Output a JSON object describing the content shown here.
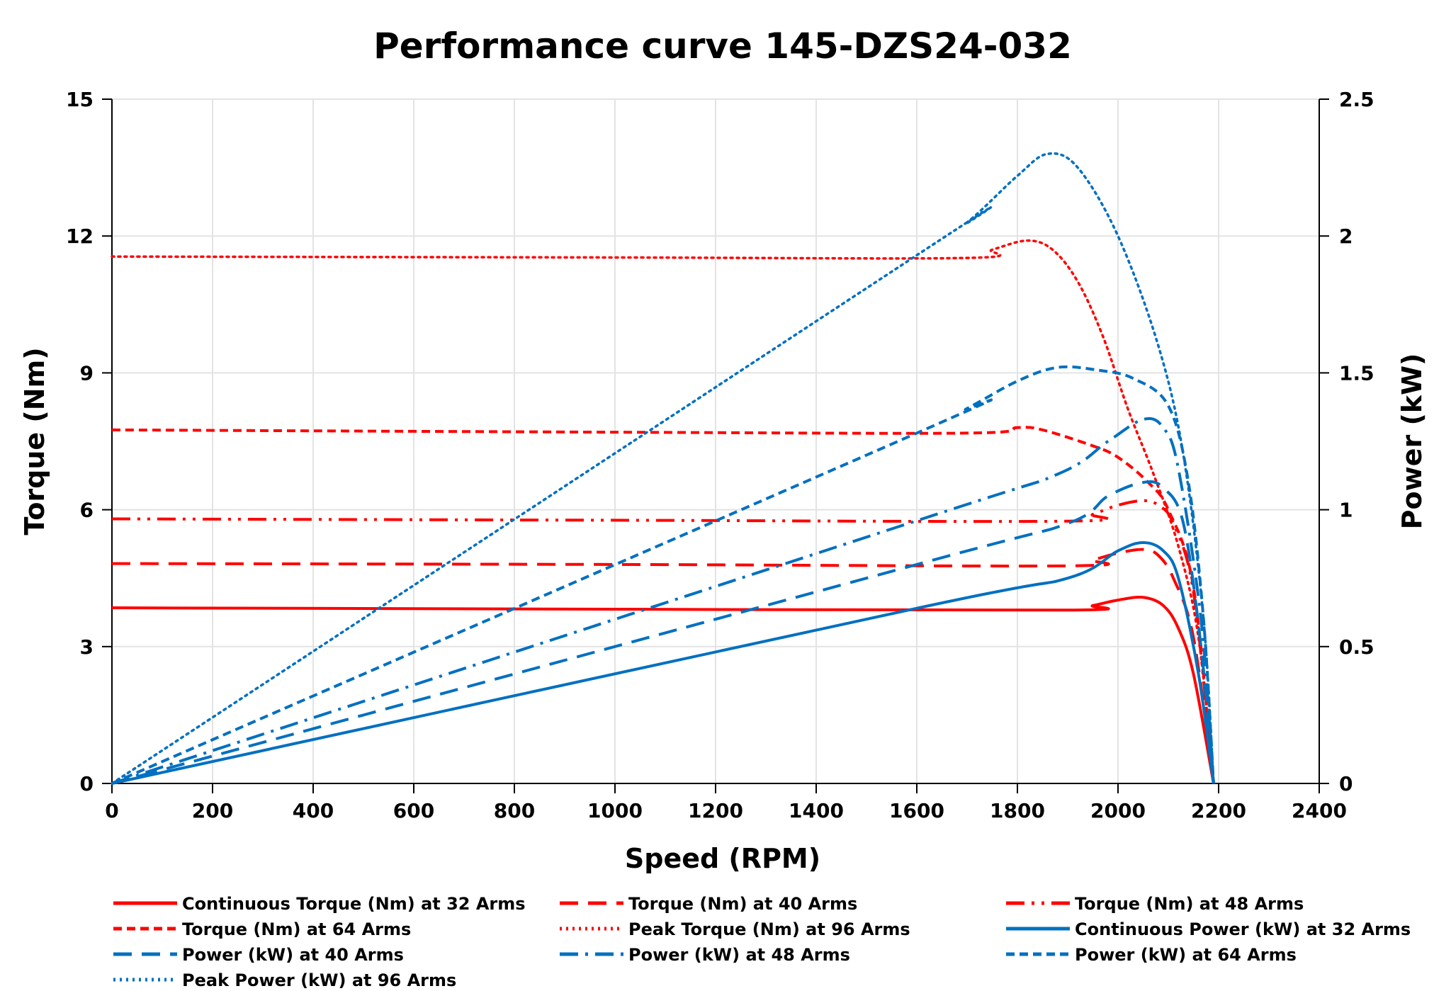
{
  "chart_data": {
    "type": "line",
    "title": "Performance curve 145-DZS24-032",
    "xlabel": "Speed (RPM)",
    "ylabel": "Torque (Nm)",
    "y2label": "Power (kW)",
    "xlim": [
      0,
      2400
    ],
    "ylim": [
      0,
      15
    ],
    "y2lim": [
      0,
      2.5
    ],
    "xticks": [
      0,
      200,
      400,
      600,
      800,
      1000,
      1200,
      1400,
      1600,
      1800,
      2000,
      2200,
      2400
    ],
    "yticks": [
      0,
      3,
      6,
      9,
      12,
      15
    ],
    "y2ticks": [
      "0",
      "0.5",
      "1",
      "1.5",
      "2",
      "2.5"
    ],
    "grid": true,
    "legend_position": "bottom",
    "series": [
      {
        "name": "Continuous Torque (Nm) at 32 Arms",
        "axis": "left",
        "color": "#FF0000",
        "style": "solid",
        "points": [
          [
            0,
            3.85
          ],
          [
            1000,
            3.82
          ],
          [
            1900,
            3.8
          ],
          [
            1950,
            3.9
          ],
          [
            2000,
            4.02
          ],
          [
            2050,
            4.08
          ],
          [
            2090,
            3.9
          ],
          [
            2120,
            3.4
          ],
          [
            2150,
            2.4
          ],
          [
            2190,
            0
          ]
        ]
      },
      {
        "name": "Torque (Nm) at 40 Arms",
        "axis": "left",
        "color": "#FF0000",
        "style": "longdash",
        "points": [
          [
            0,
            4.82
          ],
          [
            1000,
            4.8
          ],
          [
            1900,
            4.77
          ],
          [
            1950,
            4.9
          ],
          [
            2000,
            5.05
          ],
          [
            2050,
            5.13
          ],
          [
            2080,
            5.0
          ],
          [
            2110,
            4.5
          ],
          [
            2150,
            3.2
          ],
          [
            2190,
            0
          ]
        ]
      },
      {
        "name": "Torque (Nm) at 48 Arms",
        "axis": "left",
        "color": "#FF0000",
        "style": "dashdotdot",
        "points": [
          [
            0,
            5.8
          ],
          [
            1000,
            5.77
          ],
          [
            1900,
            5.75
          ],
          [
            1950,
            5.9
          ],
          [
            2000,
            6.1
          ],
          [
            2050,
            6.2
          ],
          [
            2080,
            6.1
          ],
          [
            2110,
            5.7
          ],
          [
            2150,
            4.2
          ],
          [
            2190,
            0
          ]
        ]
      },
      {
        "name": "Torque (Nm) at 64 Arms",
        "axis": "left",
        "color": "#FF0000",
        "style": "dash",
        "points": [
          [
            0,
            7.75
          ],
          [
            1000,
            7.7
          ],
          [
            1700,
            7.68
          ],
          [
            1800,
            7.8
          ],
          [
            1850,
            7.75
          ],
          [
            1950,
            7.4
          ],
          [
            2000,
            7.15
          ],
          [
            2060,
            6.6
          ],
          [
            2100,
            6.0
          ],
          [
            2150,
            4.3
          ],
          [
            2190,
            0
          ]
        ]
      },
      {
        "name": "Peak  Torque (Nm) at 96 Arms",
        "axis": "left",
        "color": "#FF0000",
        "style": "dot",
        "points": [
          [
            0,
            11.55
          ],
          [
            1000,
            11.53
          ],
          [
            1700,
            11.52
          ],
          [
            1750,
            11.7
          ],
          [
            1820,
            11.9
          ],
          [
            1870,
            11.7
          ],
          [
            1920,
            11.0
          ],
          [
            1970,
            9.8
          ],
          [
            2020,
            8.2
          ],
          [
            2070,
            6.8
          ],
          [
            2120,
            5.2
          ],
          [
            2160,
            3.2
          ],
          [
            2190,
            0
          ]
        ]
      },
      {
        "name": "Continuous Power (kW) at 32 Arms",
        "axis": "right",
        "color": "#0070C0",
        "style": "solid",
        "points": [
          [
            0,
            0
          ],
          [
            1600,
            0.64
          ],
          [
            1900,
            0.75
          ],
          [
            2000,
            0.85
          ],
          [
            2050,
            0.88
          ],
          [
            2090,
            0.85
          ],
          [
            2120,
            0.75
          ],
          [
            2160,
            0.4
          ],
          [
            2190,
            0
          ]
        ]
      },
      {
        "name": "Power (kW) at 40 Arms",
        "axis": "right",
        "color": "#0070C0",
        "style": "longdash",
        "points": [
          [
            0,
            0
          ],
          [
            1600,
            0.8
          ],
          [
            1900,
            0.95
          ],
          [
            1980,
            1.05
          ],
          [
            2050,
            1.1
          ],
          [
            2090,
            1.08
          ],
          [
            2130,
            0.95
          ],
          [
            2165,
            0.5
          ],
          [
            2190,
            0
          ]
        ]
      },
      {
        "name": "Power (kW) at 48 Arms",
        "axis": "right",
        "color": "#0070C0",
        "style": "dashdot",
        "points": [
          [
            0,
            0
          ],
          [
            1600,
            0.96
          ],
          [
            1880,
            1.13
          ],
          [
            1980,
            1.25
          ],
          [
            2050,
            1.33
          ],
          [
            2090,
            1.3
          ],
          [
            2120,
            1.15
          ],
          [
            2165,
            0.6
          ],
          [
            2190,
            0
          ]
        ]
      },
      {
        "name": "Power (kW) at 64 Arms",
        "axis": "right",
        "color": "#0070C0",
        "style": "dash",
        "points": [
          [
            0,
            0
          ],
          [
            1600,
            1.28
          ],
          [
            1700,
            1.37
          ],
          [
            1800,
            1.47
          ],
          [
            1880,
            1.52
          ],
          [
            1960,
            1.51
          ],
          [
            2030,
            1.48
          ],
          [
            2100,
            1.38
          ],
          [
            2140,
            1.1
          ],
          [
            2170,
            0.6
          ],
          [
            2190,
            0
          ]
        ]
      },
      {
        "name": "Peak Power (kW) at 96 Arms",
        "axis": "right",
        "color": "#0070C0",
        "style": "dot",
        "points": [
          [
            0,
            0
          ],
          [
            1600,
            1.93
          ],
          [
            1700,
            2.05
          ],
          [
            1800,
            2.22
          ],
          [
            1860,
            2.3
          ],
          [
            1920,
            2.25
          ],
          [
            2000,
            2.0
          ],
          [
            2080,
            1.6
          ],
          [
            2130,
            1.2
          ],
          [
            2170,
            0.6
          ],
          [
            2190,
            0
          ]
        ]
      }
    ]
  }
}
